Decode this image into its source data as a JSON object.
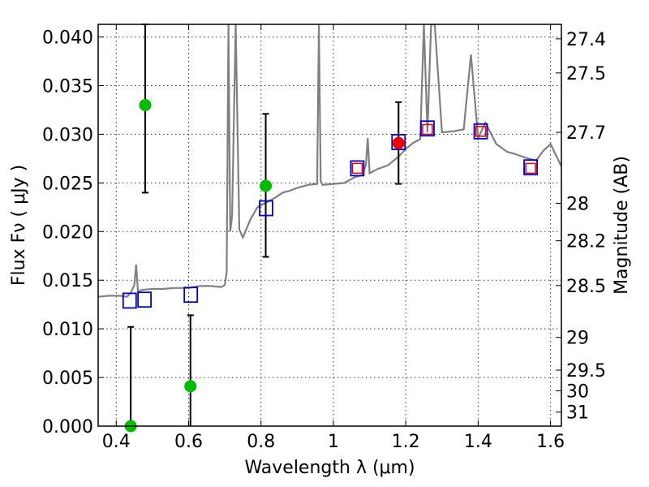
{
  "chart_data": {
    "type": "scatter",
    "title": "",
    "xlabel": "Wavelength  λ (μm)",
    "ylabel_left": "Flux  Fν  ( μJy )",
    "ylabel_right": "Magnitude (AB)",
    "xlim": [
      0.35,
      1.63
    ],
    "ylim": [
      0.0,
      0.0413
    ],
    "grid": true,
    "x_ticks": [
      0.4,
      0.6,
      0.8,
      1.0,
      1.2,
      1.4,
      1.6
    ],
    "x_tick_labels": [
      "0.4",
      "0.6",
      "0.8",
      "1",
      "1.2",
      "1.4",
      "1.6"
    ],
    "y_ticks": [
      0.0,
      0.005,
      0.01,
      0.015,
      0.02,
      0.025,
      0.03,
      0.035,
      0.04
    ],
    "y_tick_labels": [
      "0.000",
      "0.005",
      "0.010",
      "0.015",
      "0.020",
      "0.025",
      "0.030",
      "0.035",
      "0.040"
    ],
    "mag_ticks": [
      27.4,
      27.5,
      27.7,
      28,
      28.2,
      28.5,
      29,
      29.5,
      30,
      31
    ],
    "mag_tick_labels": [
      "27.4",
      "27.5",
      "27.7",
      "28",
      "28.2",
      "28.5",
      "29",
      "29.5",
      "30",
      "31"
    ],
    "colors": {
      "spectrum": "#808080",
      "green_points": "#00bb00",
      "red_points": "#ee0000",
      "blue_squares": "#0000cc",
      "red_squares": "#dd0000"
    },
    "spectrum": {
      "name": "model SED",
      "x": [
        0.35,
        0.38,
        0.41,
        0.43,
        0.44,
        0.45,
        0.455,
        0.46,
        0.47,
        0.5,
        0.53,
        0.56,
        0.6,
        0.63,
        0.66,
        0.69,
        0.7,
        0.705,
        0.71,
        0.715,
        0.72,
        0.73,
        0.74,
        0.75,
        0.77,
        0.79,
        0.82,
        0.84,
        0.86,
        0.88,
        0.9,
        0.93,
        0.955,
        0.96,
        0.965,
        0.97,
        1.0,
        1.03,
        1.06,
        1.08,
        1.09,
        1.095,
        1.1,
        1.12,
        1.15,
        1.18,
        1.2,
        1.22,
        1.24,
        1.25,
        1.26,
        1.27,
        1.28,
        1.3,
        1.33,
        1.36,
        1.38,
        1.4,
        1.42,
        1.45,
        1.48,
        1.5,
        1.53,
        1.56,
        1.58,
        1.6,
        1.63
      ],
      "y": [
        0.0133,
        0.0134,
        0.0134,
        0.0133,
        0.0137,
        0.0145,
        0.0166,
        0.0138,
        0.014,
        0.0141,
        0.0141,
        0.0142,
        0.0142,
        0.0144,
        0.0144,
        0.0143,
        0.0145,
        0.0158,
        0.0413,
        0.02,
        0.0216,
        0.0413,
        0.0202,
        0.0194,
        0.0212,
        0.0225,
        0.0231,
        0.0235,
        0.024,
        0.0242,
        0.0245,
        0.0248,
        0.0249,
        0.0413,
        0.0252,
        0.0248,
        0.0249,
        0.025,
        0.0256,
        0.0258,
        0.0269,
        0.0296,
        0.026,
        0.0264,
        0.0268,
        0.0277,
        0.0285,
        0.0291,
        0.0295,
        0.0413,
        0.0302,
        0.0413,
        0.0413,
        0.0302,
        0.0303,
        0.0305,
        0.0382,
        0.0296,
        0.0312,
        0.029,
        0.0282,
        0.028,
        0.0276,
        0.0273,
        0.0283,
        0.029,
        0.0267
      ]
    },
    "series": [
      {
        "name": "green detections",
        "marker": "circle",
        "points": [
          {
            "x": 0.44,
            "y": 0.0,
            "yerr_low": 0.0,
            "yerr_high": 0.0102
          },
          {
            "x": 0.48,
            "y": 0.033,
            "yerr_low": 0.024,
            "yerr_high": 0.0413
          },
          {
            "x": 0.605,
            "y": 0.0041,
            "yerr_low": 0.0,
            "yerr_high": 0.0114
          },
          {
            "x": 0.813,
            "y": 0.0247,
            "yerr_low": 0.0174,
            "yerr_high": 0.0321
          }
        ]
      },
      {
        "name": "red detection",
        "marker": "circle",
        "points": [
          {
            "x": 1.18,
            "y": 0.0291,
            "yerr_low": 0.0249,
            "yerr_high": 0.0333
          }
        ]
      },
      {
        "name": "blue model photometry",
        "marker": "open-square",
        "points": [
          {
            "x": 0.437,
            "y": 0.0129
          },
          {
            "x": 0.478,
            "y": 0.013
          },
          {
            "x": 0.606,
            "y": 0.0135
          },
          {
            "x": 0.814,
            "y": 0.0224
          },
          {
            "x": 1.066,
            "y": 0.0265
          },
          {
            "x": 1.18,
            "y": 0.0292
          },
          {
            "x": 1.26,
            "y": 0.0306
          },
          {
            "x": 1.407,
            "y": 0.0303
          },
          {
            "x": 1.545,
            "y": 0.0266
          }
        ]
      },
      {
        "name": "red model photometry",
        "marker": "open-square-small",
        "points": [
          {
            "x": 1.066,
            "y": 0.0265
          },
          {
            "x": 1.26,
            "y": 0.0305
          },
          {
            "x": 1.407,
            "y": 0.0303
          },
          {
            "x": 1.545,
            "y": 0.0265
          }
        ]
      }
    ]
  }
}
